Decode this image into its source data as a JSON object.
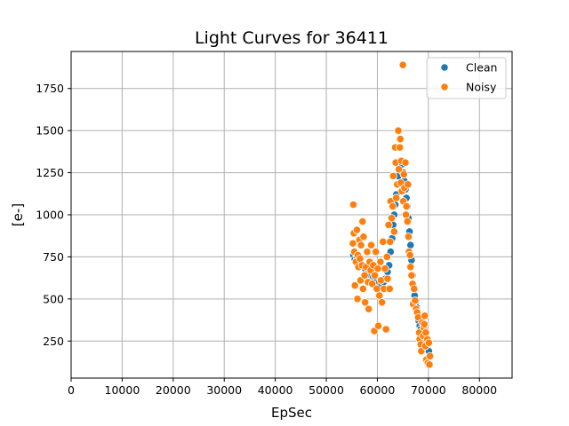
{
  "chart_data": {
    "type": "scatter",
    "title": "Light Curves for 36411",
    "xlabel": "EpSec",
    "ylabel": "[e-]",
    "xlim": [
      0,
      86400
    ],
    "ylim": [
      30,
      1970
    ],
    "xticks": [
      0,
      10000,
      20000,
      30000,
      40000,
      50000,
      60000,
      70000,
      80000
    ],
    "yticks": [
      250,
      500,
      750,
      1000,
      1250,
      1500,
      1750
    ],
    "grid": true,
    "legend_position": "top-right",
    "series": [
      {
        "name": "Clean",
        "color": "#1f77b4",
        "points": [
          [
            55300,
            760
          ],
          [
            55600,
            735
          ],
          [
            56000,
            745
          ],
          [
            56400,
            720
          ],
          [
            56800,
            700
          ],
          [
            57200,
            690
          ],
          [
            57600,
            680
          ],
          [
            58000,
            650
          ],
          [
            58400,
            660
          ],
          [
            58800,
            640
          ],
          [
            59200,
            630
          ],
          [
            59600,
            620
          ],
          [
            60000,
            610
          ],
          [
            60400,
            600
          ],
          [
            60800,
            590
          ],
          [
            61200,
            600
          ],
          [
            61600,
            620
          ],
          [
            62000,
            660
          ],
          [
            62300,
            700
          ],
          [
            62600,
            780
          ],
          [
            62900,
            860
          ],
          [
            63100,
            940
          ],
          [
            63300,
            1000
          ],
          [
            63500,
            1060
          ],
          [
            63700,
            1120
          ],
          [
            63900,
            1180
          ],
          [
            64100,
            1230
          ],
          [
            64300,
            1270
          ],
          [
            64500,
            1300
          ],
          [
            64700,
            1320
          ],
          [
            64900,
            1300
          ],
          [
            65100,
            1250
          ],
          [
            65300,
            1200
          ],
          [
            65500,
            1150
          ],
          [
            65700,
            1100
          ],
          [
            65900,
            1050
          ],
          [
            66100,
            980
          ],
          [
            66300,
            900
          ],
          [
            66500,
            820
          ],
          [
            66700,
            730
          ],
          [
            66900,
            640
          ],
          [
            67100,
            570
          ],
          [
            67300,
            520
          ],
          [
            67500,
            480
          ],
          [
            67700,
            450
          ],
          [
            67900,
            410
          ],
          [
            68100,
            370
          ],
          [
            68300,
            340
          ],
          [
            68500,
            320
          ],
          [
            68700,
            300
          ],
          [
            68900,
            280
          ],
          [
            69100,
            260
          ],
          [
            69300,
            250
          ],
          [
            69500,
            240
          ],
          [
            69700,
            220
          ],
          [
            69900,
            200
          ],
          [
            70100,
            190
          ]
        ]
      },
      {
        "name": "Noisy",
        "color": "#ff7f0e",
        "points": [
          [
            55300,
            1060
          ],
          [
            55200,
            830
          ],
          [
            55400,
            890
          ],
          [
            55500,
            780
          ],
          [
            55600,
            580
          ],
          [
            55800,
            720
          ],
          [
            56000,
            910
          ],
          [
            56100,
            500
          ],
          [
            56200,
            760
          ],
          [
            56300,
            690
          ],
          [
            56500,
            850
          ],
          [
            56600,
            740
          ],
          [
            56700,
            610
          ],
          [
            56800,
            820
          ],
          [
            57000,
            700
          ],
          [
            57100,
            960
          ],
          [
            57200,
            560
          ],
          [
            57300,
            870
          ],
          [
            57500,
            640
          ],
          [
            57600,
            480
          ],
          [
            57800,
            690
          ],
          [
            58000,
            780
          ],
          [
            58200,
            600
          ],
          [
            58300,
            440
          ],
          [
            58500,
            720
          ],
          [
            58700,
            670
          ],
          [
            58800,
            820
          ],
          [
            59000,
            590
          ],
          [
            59200,
            700
          ],
          [
            59400,
            310
          ],
          [
            59500,
            640
          ],
          [
            59700,
            780
          ],
          [
            59900,
            560
          ],
          [
            60100,
            680
          ],
          [
            60200,
            340
          ],
          [
            60400,
            520
          ],
          [
            60600,
            720
          ],
          [
            60700,
            610
          ],
          [
            60900,
            480
          ],
          [
            61100,
            840
          ],
          [
            61300,
            560
          ],
          [
            61500,
            680
          ],
          [
            61700,
            320
          ],
          [
            61900,
            750
          ],
          [
            62000,
            620
          ],
          [
            62200,
            940
          ],
          [
            62400,
            560
          ],
          [
            62500,
            840
          ],
          [
            62600,
            1080
          ],
          [
            62800,
            980
          ],
          [
            63000,
            1050
          ],
          [
            63100,
            1230
          ],
          [
            63300,
            900
          ],
          [
            63500,
            1400
          ],
          [
            63600,
            1310
          ],
          [
            63700,
            1100
          ],
          [
            63900,
            1180
          ],
          [
            64100,
            1500
          ],
          [
            64200,
            1270
          ],
          [
            64400,
            1400
          ],
          [
            64500,
            1450
          ],
          [
            64600,
            1190
          ],
          [
            64700,
            1320
          ],
          [
            64800,
            1140
          ],
          [
            65000,
            1890
          ],
          [
            65100,
            1080
          ],
          [
            65200,
            1240
          ],
          [
            65300,
            1160
          ],
          [
            65500,
            1310
          ],
          [
            65600,
            1000
          ],
          [
            65700,
            1050
          ],
          [
            65900,
            960
          ],
          [
            66000,
            1180
          ],
          [
            66100,
            870
          ],
          [
            66200,
            780
          ],
          [
            66400,
            760
          ],
          [
            66500,
            690
          ],
          [
            66700,
            640
          ],
          [
            66900,
            590
          ],
          [
            67000,
            470
          ],
          [
            67200,
            560
          ],
          [
            67400,
            490
          ],
          [
            67600,
            440
          ],
          [
            67800,
            420
          ],
          [
            68000,
            390
          ],
          [
            68200,
            300
          ],
          [
            68300,
            260
          ],
          [
            68500,
            230
          ],
          [
            68600,
            190
          ],
          [
            68800,
            360
          ],
          [
            69000,
            280
          ],
          [
            69100,
            330
          ],
          [
            69300,
            400
          ],
          [
            69400,
            220
          ],
          [
            69500,
            300
          ],
          [
            69600,
            140
          ],
          [
            69800,
            260
          ],
          [
            69900,
            120
          ],
          [
            70100,
            240
          ],
          [
            70200,
            110
          ],
          [
            70300,
            160
          ],
          [
            69200,
            350
          ]
        ]
      }
    ]
  }
}
